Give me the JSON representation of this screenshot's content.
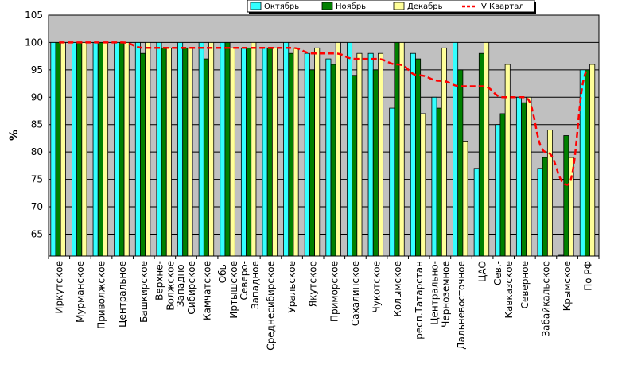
{
  "chart_data": {
    "type": "bar",
    "title": "",
    "xlabel": "",
    "ylabel": "%",
    "ylim": [
      61,
      105
    ],
    "yticks": [
      65,
      70,
      75,
      80,
      85,
      90,
      95,
      100,
      105
    ],
    "grid": true,
    "legend_position": "top",
    "categories": [
      "Иркутское",
      "Мурманское",
      "Приволжское",
      "Центральное",
      "Башкирское",
      "Верхне-Волжское",
      "Западно-Сибирское",
      "Камчатское",
      "Обь-Иртышское",
      "Северо-Западное",
      "Среднесибирское",
      "Уральское",
      "Якутское",
      "Приморское",
      "Сахалинское",
      "Чукотское",
      "Колымское",
      "респ.Татарстан",
      "Центрально-Черноземное",
      "Дальневосточное",
      "ЦАО",
      "Сев.-Кавказское",
      "Северное",
      "Забайкальское",
      "Крымское",
      "По РФ"
    ],
    "category_lines": [
      [
        "Иркутское"
      ],
      [
        "Мурманское"
      ],
      [
        "Приволжское"
      ],
      [
        "Центральное"
      ],
      [
        "Башкирское"
      ],
      [
        "Верхне-",
        "Волжское"
      ],
      [
        "Западно-",
        "Сибирское"
      ],
      [
        "Камчатское"
      ],
      [
        "Обь-",
        "Иртышское"
      ],
      [
        "Северо-",
        "Западное"
      ],
      [
        "Среднесибирское"
      ],
      [
        "Уральское"
      ],
      [
        "Якутское"
      ],
      [
        "Приморское"
      ],
      [
        "Сахалинское"
      ],
      [
        "Чукотское"
      ],
      [
        "Колымское"
      ],
      [
        "респ.Татарстан"
      ],
      [
        "Центрально-",
        "Черноземное"
      ],
      [
        "Дальневосточное"
      ],
      [
        "ЦАО"
      ],
      [
        "Сев.-",
        "Кавказское"
      ],
      [
        "Северное"
      ],
      [
        "Забайкальское"
      ],
      [
        "Крымское"
      ],
      [
        "По РФ"
      ]
    ],
    "series": [
      {
        "name": "Октябрь",
        "kind": "bar",
        "color": "#33ffff",
        "values": [
          100,
          100,
          100,
          100,
          100,
          100,
          100,
          100,
          100,
          99,
          99,
          100,
          98,
          97,
          100,
          98,
          88,
          98,
          90,
          100,
          77,
          85,
          90,
          77,
          61,
          95
        ]
      },
      {
        "name": "Ноябрь",
        "kind": "bar",
        "color": "#008000",
        "values": [
          100,
          100,
          100,
          100,
          98,
          99,
          99,
          97,
          100,
          99,
          99,
          98,
          95,
          96,
          94,
          95,
          100,
          97,
          88,
          95,
          98,
          87,
          89,
          79,
          83,
          95
        ]
      },
      {
        "name": "Декабрь",
        "kind": "bar",
        "color": "#ffff99",
        "values": [
          100,
          100,
          100,
          100,
          100,
          99,
          99,
          100,
          99,
          100,
          99,
          99,
          99,
          100,
          98,
          98,
          100,
          87,
          99,
          82,
          100,
          96,
          90,
          84,
          79,
          96
        ]
      },
      {
        "name": "IV Квартал",
        "kind": "line",
        "color": "#ff0000",
        "dashed": true,
        "values": [
          100,
          100,
          100,
          100,
          99,
          99,
          99,
          99,
          99,
          99,
          99,
          99,
          98,
          98,
          97,
          97,
          96,
          94,
          93,
          92,
          92,
          90,
          90,
          80,
          74,
          95
        ]
      }
    ],
    "plot_background": "#c0c0c0",
    "page_background": "#ffffff"
  }
}
